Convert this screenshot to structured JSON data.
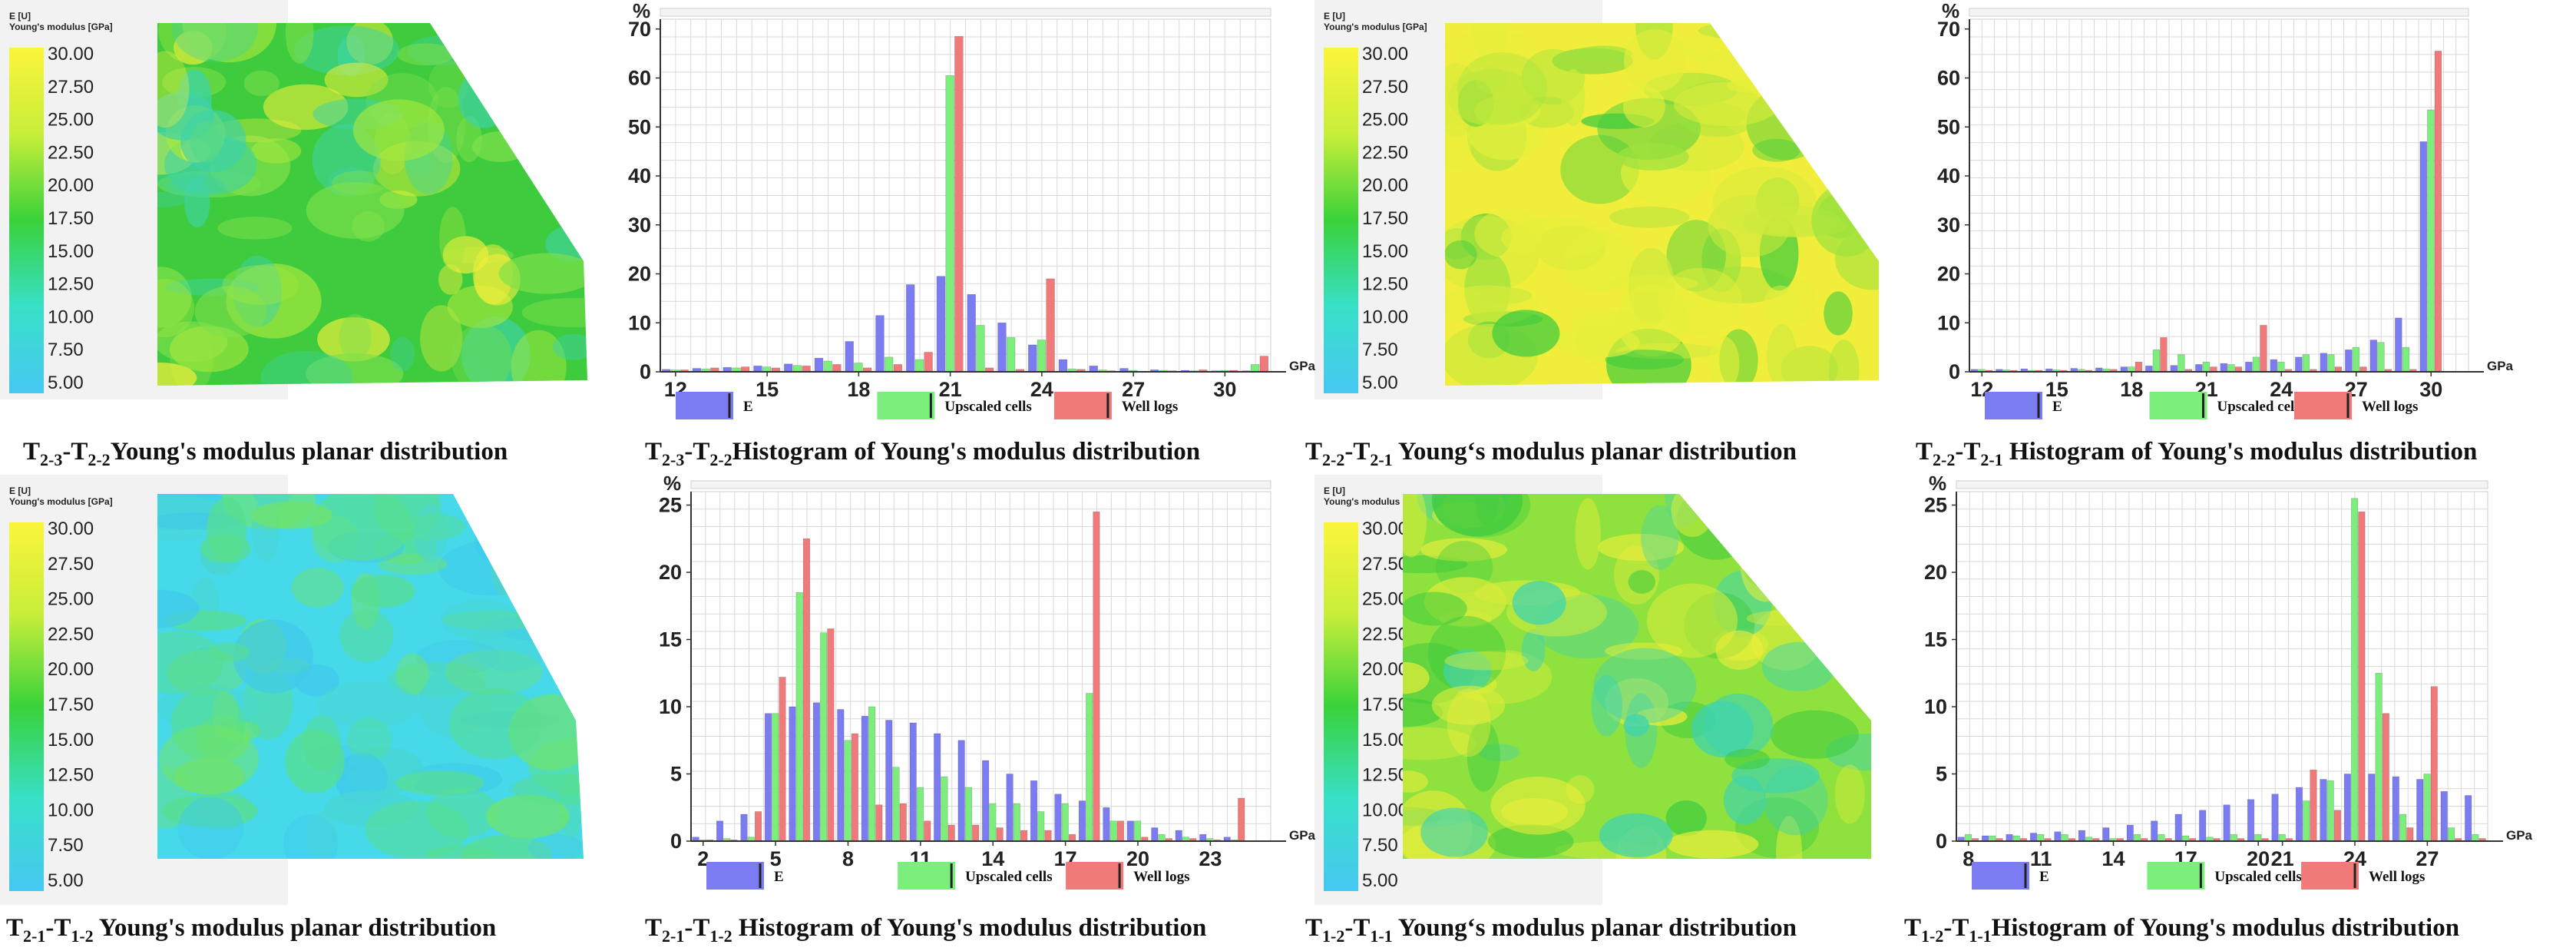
{
  "colors": {
    "series_E": "#7b7cf2",
    "series_upscaled": "#7cee7c",
    "series_welllogs": "#f07a7a",
    "grid": "#d9d9d9",
    "panel_bg": "#f2f2f2",
    "map_green": "#3ecb3e",
    "map_yellow": "#f0ee3a",
    "map_cyan": "#46d9e9"
  },
  "colorbar": {
    "title_line1": "E [U]",
    "title_line2": "Young's modulus [GPa]",
    "ticks": [
      "30.00",
      "27.50",
      "25.00",
      "22.50",
      "20.00",
      "17.50",
      "15.00",
      "12.50",
      "10.00",
      "7.50",
      "5.00"
    ]
  },
  "legend": {
    "e_label": "E",
    "upscaled_label": "Upscaled cells",
    "welllogs_label": "Well logs"
  },
  "axis": {
    "x_unit": "GPa",
    "y_unit": "%"
  },
  "maps": [
    {
      "id": "map1",
      "dominant": "green",
      "caption": {
        "p1": "T",
        "s1": "2-3",
        "p2": "-T",
        "s2": "2-2",
        "p3": "Young's modulus planar distribution"
      }
    },
    {
      "id": "map2",
      "dominant": "yellow",
      "caption": {
        "p1": "T",
        "s1": "2-2",
        "p2": "-T",
        "s2": "2-1",
        "p3": " Young‘s modulus planar distribution"
      }
    },
    {
      "id": "map3",
      "dominant": "cyan",
      "caption": {
        "p1": "T",
        "s1": "2-1",
        "p2": "-T",
        "s2": "1-2",
        "p3": " Young's modulus planar distribution"
      }
    },
    {
      "id": "map4",
      "dominant": "mixed",
      "caption": {
        "p1": "T",
        "s1": "1-2",
        "p2": "-T",
        "s2": "1-1",
        "p3": " Young‘s modulus planar distribution"
      }
    }
  ],
  "chart_data": [
    {
      "type": "bar",
      "title": "T2-3-T2-2 Histogram of Young's modulus distribution",
      "caption": {
        "p1": "T",
        "s1": "2-3",
        "p2": "-T",
        "s2": "2-2",
        "p3": "Histogram of Young's modulus distribution"
      },
      "xlabel": "GPa",
      "ylabel": "%",
      "xlim": [
        11.5,
        31.5
      ],
      "ylim": [
        0,
        72
      ],
      "xticks": [
        12,
        15,
        18,
        21,
        24,
        27,
        30
      ],
      "yticks": [
        0,
        10,
        20,
        30,
        40,
        50,
        60,
        70
      ],
      "bin_width": 1,
      "x": [
        12,
        13,
        14,
        15,
        16,
        17,
        18,
        19,
        20,
        21,
        22,
        23,
        24,
        25,
        26,
        27,
        28,
        29,
        30,
        31
      ],
      "series": [
        {
          "name": "E",
          "values": [
            0.5,
            0.7,
            0.9,
            1.2,
            1.6,
            2.8,
            6.2,
            11.5,
            17.8,
            19.5,
            15.8,
            10.0,
            5.5,
            2.5,
            1.2,
            0.7,
            0.4,
            0.3,
            0.2,
            0.2
          ]
        },
        {
          "name": "Upscaled cells",
          "values": [
            0.4,
            0.6,
            0.8,
            1.0,
            1.3,
            2.2,
            1.8,
            3.0,
            2.5,
            60.5,
            9.5,
            7.0,
            6.5,
            0.6,
            0.4,
            0.3,
            0.3,
            0.2,
            0.3,
            1.5
          ]
        },
        {
          "name": "Well logs",
          "values": [
            0.4,
            0.8,
            1.0,
            0.8,
            1.2,
            1.5,
            0.8,
            1.5,
            4.0,
            68.5,
            0.8,
            0.5,
            19.0,
            0.5,
            0.2,
            0.1,
            0.2,
            0.4,
            0.3,
            3.2
          ]
        }
      ]
    },
    {
      "type": "bar",
      "title": "T2-2-T2-1 Histogram of Young's modulus distribution",
      "caption": {
        "p1": "T",
        "s1": "2-2",
        "p2": "-T",
        "s2": "2-1",
        "p3": " Histogram of Young's modulus distribution"
      },
      "xlabel": "GPa",
      "ylabel": "%",
      "xlim": [
        11.5,
        31.5
      ],
      "ylim": [
        0,
        72
      ],
      "xticks": [
        12,
        15,
        18,
        21,
        24,
        27,
        30
      ],
      "yticks": [
        0,
        10,
        20,
        30,
        40,
        50,
        60,
        70
      ],
      "bin_width": 1,
      "x": [
        12,
        13,
        14,
        15,
        16,
        17,
        18,
        19,
        20,
        21,
        22,
        23,
        24,
        25,
        26,
        27,
        28,
        29,
        30
      ],
      "series": [
        {
          "name": "E",
          "values": [
            0.5,
            0.5,
            0.6,
            0.6,
            0.7,
            0.8,
            1.0,
            1.2,
            1.3,
            1.5,
            1.7,
            2.0,
            2.5,
            3.0,
            3.8,
            4.5,
            6.5,
            11.0,
            47.0
          ]
        },
        {
          "name": "Upscaled cells",
          "values": [
            0.5,
            0.4,
            0.3,
            0.4,
            0.5,
            0.6,
            1.0,
            4.5,
            3.5,
            2.0,
            1.5,
            3.0,
            2.0,
            3.5,
            3.5,
            5.0,
            6.0,
            5.0,
            53.5
          ]
        },
        {
          "name": "Well logs",
          "values": [
            0.3,
            0.3,
            0.3,
            0.3,
            0.3,
            0.5,
            2.0,
            7.0,
            0.5,
            1.0,
            1.0,
            9.5,
            0.5,
            0.5,
            1.0,
            1.0,
            0.5,
            0.5,
            65.5
          ]
        }
      ]
    },
    {
      "type": "bar",
      "title": "T2-1-T1-2 Histogram of Young's modulus distribution",
      "caption": {
        "p1": "T",
        "s1": "2-1",
        "p2": "-T",
        "s2": "1-2",
        "p3": " Histogram of Young's modulus distribution"
      },
      "xlabel": "GPa",
      "ylabel": "%",
      "xlim": [
        1.5,
        25.5
      ],
      "ylim": [
        0,
        26
      ],
      "xticks": [
        2,
        5,
        8,
        11,
        14,
        17,
        20,
        23
      ],
      "yticks": [
        0,
        5,
        10,
        15,
        20,
        25
      ],
      "bin_width": 1,
      "x": [
        2,
        3,
        4,
        5,
        6,
        7,
        8,
        9,
        10,
        11,
        12,
        13,
        14,
        15,
        16,
        17,
        18,
        19,
        20,
        21,
        22,
        23,
        24
      ],
      "series": [
        {
          "name": "E",
          "values": [
            0.3,
            1.5,
            2.0,
            9.5,
            10.0,
            10.3,
            9.8,
            9.3,
            9.0,
            8.8,
            8.0,
            7.5,
            6.0,
            5.0,
            4.5,
            3.5,
            3.0,
            2.5,
            1.5,
            1.0,
            0.8,
            0.5,
            0.3
          ]
        },
        {
          "name": "Upscaled cells",
          "values": [
            0.1,
            0.2,
            0.3,
            9.5,
            18.5,
            15.5,
            7.5,
            10.0,
            5.5,
            4.0,
            4.8,
            4.0,
            2.8,
            2.8,
            2.2,
            2.8,
            11.0,
            1.5,
            1.5,
            0.5,
            0.3,
            0.2,
            0.1
          ]
        },
        {
          "name": "Well logs",
          "values": [
            0.1,
            0.1,
            2.2,
            12.2,
            22.5,
            15.8,
            8.0,
            2.7,
            2.8,
            1.5,
            1.2,
            1.2,
            1.0,
            0.8,
            0.8,
            0.5,
            24.5,
            1.5,
            0.3,
            0.2,
            0.2,
            0.1,
            3.2
          ]
        }
      ]
    },
    {
      "type": "bar",
      "title": "T1-2-T1-1 Histogram of Young's modulus distribution",
      "caption": {
        "p1": "T",
        "s1": "1-2",
        "p2": "-T",
        "s2": "1-1",
        "p3": "Histogram of Young's modulus distribution"
      },
      "xlabel": "GPa",
      "ylabel": "%",
      "xlim": [
        7.5,
        29.5
      ],
      "ylim": [
        0,
        26
      ],
      "xticks": [
        8,
        11,
        14,
        17,
        20,
        21,
        24,
        27
      ],
      "yticks": [
        0,
        5,
        10,
        15,
        20,
        25
      ],
      "bin_width": 1,
      "x": [
        8,
        9,
        10,
        11,
        12,
        13,
        14,
        15,
        16,
        17,
        18,
        19,
        20,
        21,
        22,
        23,
        24,
        25,
        26,
        27,
        28,
        29
      ],
      "series": [
        {
          "name": "E",
          "values": [
            0.3,
            0.4,
            0.5,
            0.6,
            0.7,
            0.8,
            1.0,
            1.2,
            1.5,
            2.0,
            2.3,
            2.7,
            3.1,
            3.5,
            4.0,
            4.6,
            5.0,
            5.0,
            4.8,
            4.6,
            3.7,
            3.4
          ]
        },
        {
          "name": "Upscaled cells",
          "values": [
            0.5,
            0.4,
            0.4,
            0.5,
            0.5,
            0.3,
            0.2,
            0.5,
            0.5,
            0.4,
            0.3,
            0.5,
            0.5,
            0.5,
            3.0,
            4.5,
            25.5,
            12.5,
            2.0,
            5.0,
            1.0,
            0.5
          ]
        },
        {
          "name": "Well logs",
          "values": [
            0.2,
            0.2,
            0.2,
            0.2,
            0.2,
            0.2,
            0.2,
            0.2,
            0.2,
            0.2,
            0.2,
            0.2,
            0.2,
            0.2,
            5.3,
            2.3,
            24.5,
            9.5,
            1.0,
            11.5,
            0.2,
            0.2
          ]
        }
      ]
    }
  ]
}
